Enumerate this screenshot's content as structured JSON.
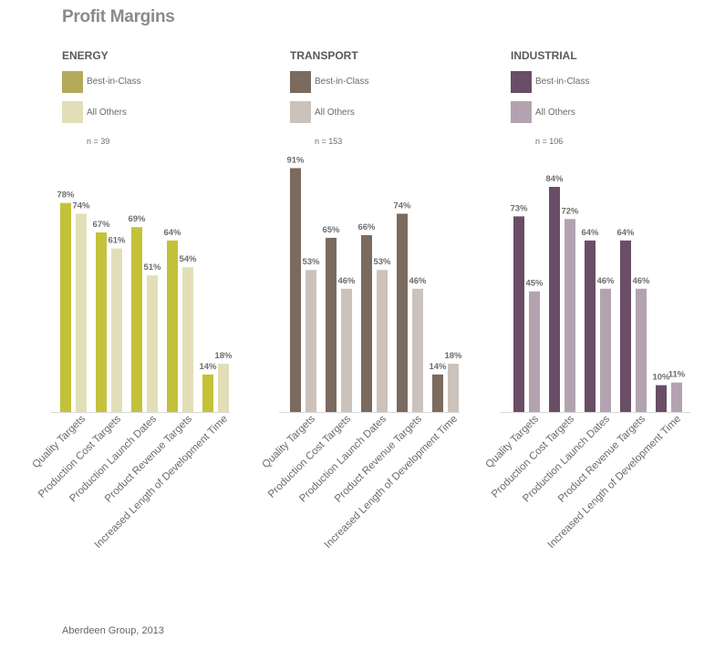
{
  "title": "Profit Margins",
  "source": "Aberdeen Group, 2013",
  "chart_data": [
    {
      "type": "bar",
      "title": "ENERGY",
      "n_label": "n = 39",
      "categories": [
        "Quality Targets",
        "Production Cost Targets",
        "Production Launch Dates",
        "Product Revenue Targets",
        "Increased Length of Development Time"
      ],
      "series": [
        {
          "name": "Best-in-Class",
          "color": "#c3c23a",
          "values": [
            78,
            67,
            69,
            64,
            14
          ],
          "labels": [
            "78%",
            "67%",
            "69%",
            "64%",
            "14%"
          ]
        },
        {
          "name": "All Others",
          "color": "#e2dfb8",
          "values": [
            74,
            61,
            51,
            54,
            18
          ],
          "labels": [
            "74%",
            "61%",
            "51%",
            "54%",
            "18%"
          ]
        }
      ],
      "legend_swatch": {
        "best": "#b4ab5a",
        "others": "#e2dfb8"
      }
    },
    {
      "type": "bar",
      "title": "TRANSPORT",
      "n_label": "n = 153",
      "categories": [
        "Quality Targets",
        "Production Cost Targets",
        "Production Launch Dates",
        "Product Revenue Targets",
        "Increased Length of Development Time"
      ],
      "series": [
        {
          "name": "Best-in-Class",
          "color": "#7b6a5e",
          "values": [
            91,
            65,
            66,
            74,
            14
          ],
          "labels": [
            "91%",
            "65%",
            "66%",
            "74%",
            "14%"
          ]
        },
        {
          "name": "All Others",
          "color": "#cbc2bb",
          "values": [
            53,
            46,
            53,
            46,
            18
          ],
          "labels": [
            "53%",
            "46%",
            "53%",
            "46%",
            "18%"
          ]
        }
      ],
      "legend_swatch": {
        "best": "#7b6a5e",
        "others": "#cbc2bb"
      }
    },
    {
      "type": "bar",
      "title": "INDUSTRIAL",
      "n_label": "n = 106",
      "categories": [
        "Quality Targets",
        "Production Cost Targets",
        "Production Launch Dates",
        "Product Revenue Targets",
        "Increased Length of Development Time"
      ],
      "series": [
        {
          "name": "Best-in-Class",
          "color": "#6a4d66",
          "values": [
            73,
            84,
            64,
            64,
            10
          ],
          "labels": [
            "73%",
            "84%",
            "64%",
            "64%",
            "10%"
          ]
        },
        {
          "name": "All Others",
          "color": "#b3a3b0",
          "values": [
            45,
            72,
            46,
            46,
            11
          ],
          "labels": [
            "45%",
            "72%",
            "46%",
            "46%",
            "11%"
          ]
        }
      ],
      "legend_swatch": {
        "best": "#6a4d66",
        "others": "#b3a3b0"
      }
    }
  ]
}
